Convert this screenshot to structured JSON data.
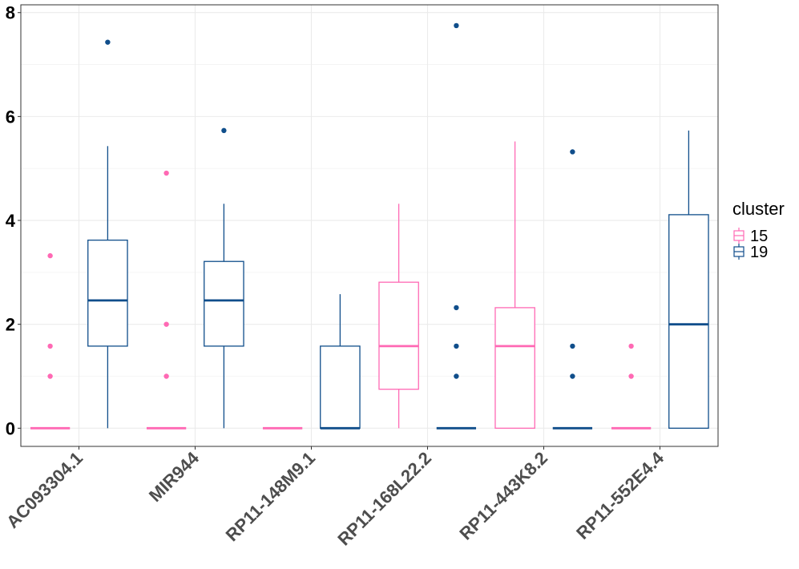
{
  "chart_data": {
    "type": "box",
    "categories": [
      "AC093304.1",
      "MIR944",
      "RP11-148M9.1",
      "RP11-168L22.2",
      "RP11-443K8.2",
      "RP11-552E4.4"
    ],
    "ylim": [
      -0.35,
      8.15
    ],
    "yticks": [
      0,
      2,
      4,
      6,
      8
    ],
    "xlabel": "",
    "ylabel": "",
    "title": "",
    "grid": true,
    "legend": {
      "title": "cluster",
      "placement": "right",
      "entries": [
        {
          "label": "15",
          "color": "#FF69B4"
        },
        {
          "label": "19",
          "color": "#104E8B"
        }
      ]
    },
    "series": [
      {
        "name": "15",
        "color": "#FF69B4",
        "boxes": [
          {
            "category": "AC093304.1",
            "min": 0,
            "q1": 0,
            "median": 0,
            "q3": 0,
            "max": 0,
            "outliers": [
              1.0,
              1.58,
              3.32
            ]
          },
          {
            "category": "MIR944",
            "min": 0,
            "q1": 0,
            "median": 0,
            "q3": 0,
            "max": 0,
            "outliers": [
              1.0,
              2.0,
              4.91
            ]
          },
          {
            "category": "RP11-148M9.1",
            "min": 0,
            "q1": 0,
            "median": 0,
            "q3": 0,
            "max": 0,
            "outliers": []
          },
          {
            "category": "RP11-168L22.2",
            "min": 0,
            "q1": 0.75,
            "median": 1.58,
            "q3": 2.81,
            "max": 4.32,
            "outliers": []
          },
          {
            "category": "RP11-443K8.2",
            "min": 0,
            "q1": 0,
            "median": 1.58,
            "q3": 2.32,
            "max": 5.52,
            "outliers": []
          },
          {
            "category": "RP11-552E4.4",
            "min": 0,
            "q1": 0,
            "median": 0,
            "q3": 0,
            "max": 0,
            "outliers": [
              1.0,
              1.58
            ]
          }
        ]
      },
      {
        "name": "19",
        "color": "#104E8B",
        "boxes": [
          {
            "category": "AC093304.1",
            "min": 0,
            "q1": 1.58,
            "median": 2.46,
            "q3": 3.62,
            "max": 5.43,
            "outliers": [
              7.43
            ]
          },
          {
            "category": "MIR944",
            "min": 0,
            "q1": 1.58,
            "median": 2.46,
            "q3": 3.21,
            "max": 4.32,
            "outliers": [
              5.73
            ]
          },
          {
            "category": "RP11-148M9.1",
            "min": 0,
            "q1": 0,
            "median": 0,
            "q3": 1.58,
            "max": 2.58,
            "outliers": []
          },
          {
            "category": "RP11-168L22.2",
            "min": 0,
            "q1": 0,
            "median": 0,
            "q3": 0,
            "max": 0,
            "outliers": [
              1.0,
              1.58,
              2.32,
              7.75
            ]
          },
          {
            "category": "RP11-443K8.2",
            "min": 0,
            "q1": 0,
            "median": 0,
            "q3": 0,
            "max": 0,
            "outliers": [
              1.0,
              1.58,
              5.32
            ]
          },
          {
            "category": "RP11-552E4.4",
            "min": 0,
            "q1": 0,
            "median": 2.0,
            "q3": 4.11,
            "max": 5.73,
            "outliers": []
          }
        ]
      }
    ]
  }
}
